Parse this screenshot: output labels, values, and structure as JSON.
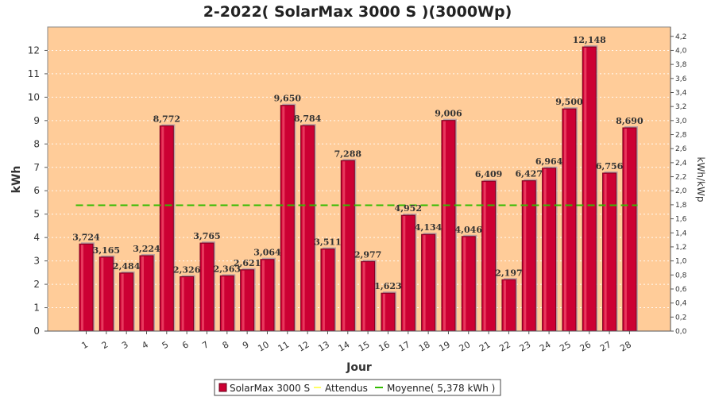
{
  "chart_data": {
    "type": "bar",
    "title": "2-2022( SolarMax 3000 S )(3000Wp)",
    "xlabel": "Jour",
    "ylabel": "kWh",
    "y2label": "kWh/kWp",
    "ylim": [
      0,
      13
    ],
    "yticks": [
      "0",
      "1",
      "2",
      "3",
      "4",
      "5",
      "6",
      "7",
      "8",
      "9",
      "10",
      "11",
      "12"
    ],
    "y2lim": [
      0,
      4.3333
    ],
    "y2ticks": [
      "0,0",
      "0,2",
      "0,4",
      "0,6",
      "0,8",
      "1,0",
      "1,2",
      "1,4",
      "1,6",
      "1,8",
      "2,0",
      "2,2",
      "2,4",
      "2,6",
      "2,8",
      "3,0",
      "3,2",
      "3,4",
      "3,6",
      "3,8",
      "4,0",
      "4,2"
    ],
    "categories": [
      "1",
      "2",
      "3",
      "4",
      "5",
      "6",
      "7",
      "8",
      "9",
      "10",
      "11",
      "12",
      "13",
      "14",
      "15",
      "16",
      "17",
      "18",
      "19",
      "20",
      "21",
      "22",
      "23",
      "24",
      "25",
      "26",
      "27",
      "28"
    ],
    "series": [
      {
        "name": "SolarMax 3000 S",
        "values": [
          3.724,
          3.165,
          2.484,
          3.224,
          8.772,
          2.326,
          3.765,
          2.363,
          2.621,
          3.064,
          9.65,
          8.784,
          3.511,
          7.288,
          2.977,
          1.623,
          4.952,
          4.134,
          9.006,
          4.046,
          6.409,
          2.197,
          6.427,
          6.964,
          9.5,
          12.148,
          6.756,
          8.69
        ],
        "labels": [
          "3,724",
          "3,165",
          "2,484",
          "3,224",
          "8,772",
          "2,326",
          "3,765",
          "2,363",
          "2,621",
          "3,064",
          "9,650",
          "8,784",
          "3,511",
          "7,288",
          "2,977",
          "1,623",
          "4,952",
          "4,134",
          "9,006",
          "4,046",
          "6,409",
          "2,197",
          "6,427",
          "6,964",
          "9,500",
          "12,148",
          "6,756",
          "8,690"
        ],
        "color": "#cc0033"
      }
    ],
    "average": {
      "value": 5.378,
      "color": "#33bb00"
    },
    "expected_color": "#ffff66",
    "legend": [
      {
        "label": "SolarMax 3000 S",
        "color": "#cc0033",
        "kind": "box"
      },
      {
        "label": "Attendus",
        "color": "#ffff66",
        "kind": "line"
      },
      {
        "label": "Moyenne( 5,378 kWh )",
        "color": "#33bb00",
        "kind": "line"
      }
    ],
    "plot_bg": "#ffcc99",
    "grid": true,
    "legend_position": "bottom"
  }
}
